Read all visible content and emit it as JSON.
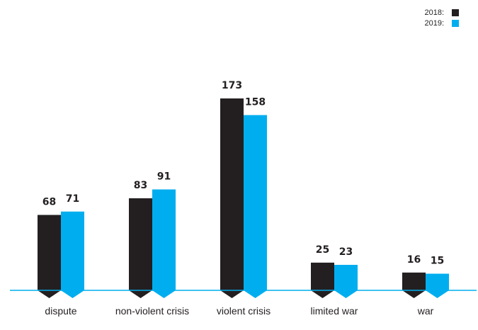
{
  "chart_data": {
    "type": "bar",
    "categories": [
      "dispute",
      "non-violent crisis",
      "violent crisis",
      "limited war",
      "war"
    ],
    "series": [
      {
        "name": "2018:",
        "values": [
          68,
          83,
          173,
          25,
          16
        ],
        "color": "#231f20"
      },
      {
        "name": "2019:",
        "values": [
          71,
          91,
          158,
          23,
          15
        ],
        "color": "#00aeef"
      }
    ],
    "ylim": [
      0,
      173
    ],
    "data_labels": true,
    "grid": false,
    "legend_placement": "top-right",
    "baseline_color": "#00aeef"
  }
}
